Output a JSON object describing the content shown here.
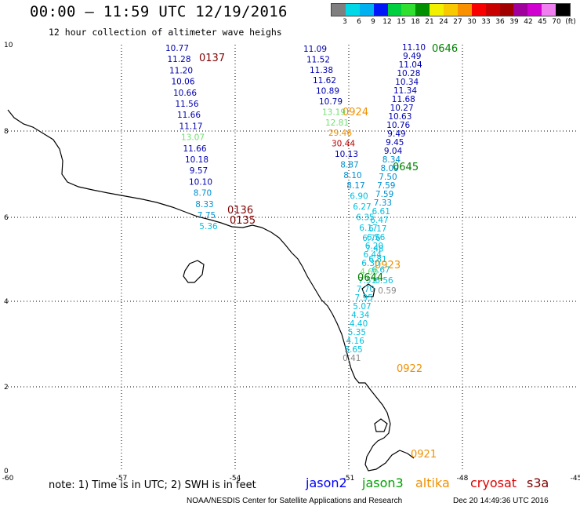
{
  "header": {
    "title": "00:00 — 11:59 UTC 12/19/2016",
    "subtitle": "12 hour collection of altimeter wave heighs"
  },
  "legend": {
    "colors": [
      "#7f7f7f",
      "#00d8e8",
      "#00b0f0",
      "#0018f8",
      "#00d040",
      "#30e030",
      "#009000",
      "#f0f000",
      "#f8c800",
      "#f89000",
      "#f80000",
      "#c80000",
      "#a00000",
      "#a0009c",
      "#d000d0",
      "#f080f0",
      "#000000"
    ],
    "labels": [
      "3",
      "6",
      "9",
      "12",
      "15",
      "18",
      "21",
      "24",
      "27",
      "30",
      "33",
      "36",
      "39",
      "42",
      "45",
      "70",
      "(ft)"
    ]
  },
  "map": {
    "lon_ticks": [
      "-60",
      "-57",
      "-54",
      "-51",
      "-48",
      "-45"
    ],
    "lat_ticks": [
      "0",
      "2",
      "4",
      "6",
      "8",
      "10"
    ],
    "colors": {
      "jason2": "#0000b0",
      "jason3": "#008000",
      "altika": "#f09000",
      "cryosat": "#c00000",
      "s3a": "#800000",
      "cyan": "#00c0e0",
      "lightgreen": "#70e070",
      "grey": "#888888",
      "mid": "#0090d0"
    },
    "passes": [
      {
        "label": "0137",
        "color": "s3a"
      },
      {
        "label": "0136",
        "color": "s3a"
      },
      {
        "label": "0135",
        "color": "s3a"
      },
      {
        "label": "0924",
        "color": "altika"
      },
      {
        "label": "0923",
        "color": "altika"
      },
      {
        "label": "0922",
        "color": "altika"
      },
      {
        "label": "0921",
        "color": "altika"
      },
      {
        "label": "0646",
        "color": "jason3"
      },
      {
        "label": "0645",
        "color": "jason3"
      },
      {
        "label": "0644",
        "color": "jason3"
      }
    ],
    "track1": [
      {
        "v": "10.77",
        "c": "jason2"
      },
      {
        "v": "11.28",
        "c": "jason2"
      },
      {
        "v": "11.20",
        "c": "jason2"
      },
      {
        "v": "10.06",
        "c": "jason2"
      },
      {
        "v": "10.66",
        "c": "jason2"
      },
      {
        "v": "11.56",
        "c": "jason2"
      },
      {
        "v": "11.66",
        "c": "jason2"
      },
      {
        "v": "11.17",
        "c": "jason2"
      },
      {
        "v": "13.07",
        "c": "lightgreen"
      },
      {
        "v": "11.66",
        "c": "jason2"
      },
      {
        "v": "10.18",
        "c": "jason2"
      },
      {
        "v": "9.57",
        "c": "jason2"
      },
      {
        "v": "10.10",
        "c": "jason2"
      },
      {
        "v": "8.70",
        "c": "mid"
      },
      {
        "v": "8.33",
        "c": "mid"
      },
      {
        "v": "7.75",
        "c": "mid"
      },
      {
        "v": "5.36",
        "c": "cyan"
      }
    ],
    "track2": [
      {
        "v": "11.09",
        "c": "jason2"
      },
      {
        "v": "11.52",
        "c": "jason2"
      },
      {
        "v": "11.38",
        "c": "jason2"
      },
      {
        "v": "11.62",
        "c": "jason2"
      },
      {
        "v": "10.89",
        "c": "jason2"
      },
      {
        "v": "10.79",
        "c": "jason2"
      },
      {
        "v": "13.19",
        "c": "lightgreen"
      },
      {
        "v": "12.81",
        "c": "lightgreen"
      },
      {
        "v": "29.46",
        "c": "altika"
      },
      {
        "v": "30.44",
        "c": "cryosat"
      },
      {
        "v": "10.13",
        "c": "jason2"
      },
      {
        "v": "8.87",
        "c": "mid"
      },
      {
        "v": "8.10",
        "c": "mid"
      },
      {
        "v": "8.17",
        "c": "mid"
      },
      {
        "v": "6.90",
        "c": "cyan"
      },
      {
        "v": "6.27",
        "c": "cyan"
      },
      {
        "v": "6.35",
        "c": "cyan"
      },
      {
        "v": "6.17",
        "c": "cyan"
      },
      {
        "v": "6.76",
        "c": "cyan"
      },
      {
        "v": "7.48",
        "c": "cyan"
      },
      {
        "v": "6.81",
        "c": "cyan"
      },
      {
        "v": "6.67",
        "c": "cyan"
      },
      {
        "v": "6.56",
        "c": "cyan"
      },
      {
        "v": "0.59",
        "c": "grey"
      }
    ],
    "track3": [
      {
        "v": "11.10",
        "c": "jason2"
      },
      {
        "v": "9.49",
        "c": "jason2"
      },
      {
        "v": "11.04",
        "c": "jason2"
      },
      {
        "v": "10.28",
        "c": "jason2"
      },
      {
        "v": "10.34",
        "c": "jason2"
      },
      {
        "v": "11.34",
        "c": "jason2"
      },
      {
        "v": "11.68",
        "c": "jason2"
      },
      {
        "v": "10.27",
        "c": "jason2"
      },
      {
        "v": "10.63",
        "c": "jason2"
      },
      {
        "v": "10.76",
        "c": "jason2"
      },
      {
        "v": "9.49",
        "c": "jason2"
      },
      {
        "v": "9.45",
        "c": "jason2"
      },
      {
        "v": "9.04",
        "c": "jason2"
      },
      {
        "v": "8.34",
        "c": "mid"
      },
      {
        "v": "8.09",
        "c": "mid"
      },
      {
        "v": "7.50",
        "c": "mid"
      },
      {
        "v": "7.59",
        "c": "mid"
      },
      {
        "v": "7.59",
        "c": "mid"
      },
      {
        "v": "7.33",
        "c": "mid"
      },
      {
        "v": "6.61",
        "c": "cyan"
      },
      {
        "v": "6.47",
        "c": "cyan"
      },
      {
        "v": "6.17",
        "c": "cyan"
      },
      {
        "v": "6.56",
        "c": "cyan"
      },
      {
        "v": "6.20",
        "c": "cyan"
      },
      {
        "v": "6.44",
        "c": "cyan"
      },
      {
        "v": "6.30",
        "c": "cyan"
      },
      {
        "v": "4.60",
        "c": "lightgreen"
      },
      {
        "v": "7.51",
        "c": "cyan"
      },
      {
        "v": "7.70",
        "c": "cyan"
      },
      {
        "v": "7.95",
        "c": "cyan"
      },
      {
        "v": "5.07",
        "c": "cyan"
      },
      {
        "v": "4.34",
        "c": "cyan"
      },
      {
        "v": "4.40",
        "c": "cyan"
      },
      {
        "v": "5.35",
        "c": "cyan"
      },
      {
        "v": "4.16",
        "c": "cyan"
      },
      {
        "v": "3.65",
        "c": "cyan"
      },
      {
        "v": "0.41",
        "c": "grey"
      }
    ]
  },
  "note": "note: 1) Time is in UTC; 2) SWH is in feet",
  "satellites": [
    {
      "name": "jason2",
      "color": "#0000ff"
    },
    {
      "name": "jason3",
      "color": "#00a000"
    },
    {
      "name": "altika",
      "color": "#f09000"
    },
    {
      "name": "cryosat",
      "color": "#e00000"
    },
    {
      "name": "s3a",
      "color": "#800000"
    }
  ],
  "footer": {
    "credit": "NOAA/NESDIS Center for Satellite Applications and Research",
    "timestamp": "Dec 20 14:49:36 UTC 2016"
  }
}
